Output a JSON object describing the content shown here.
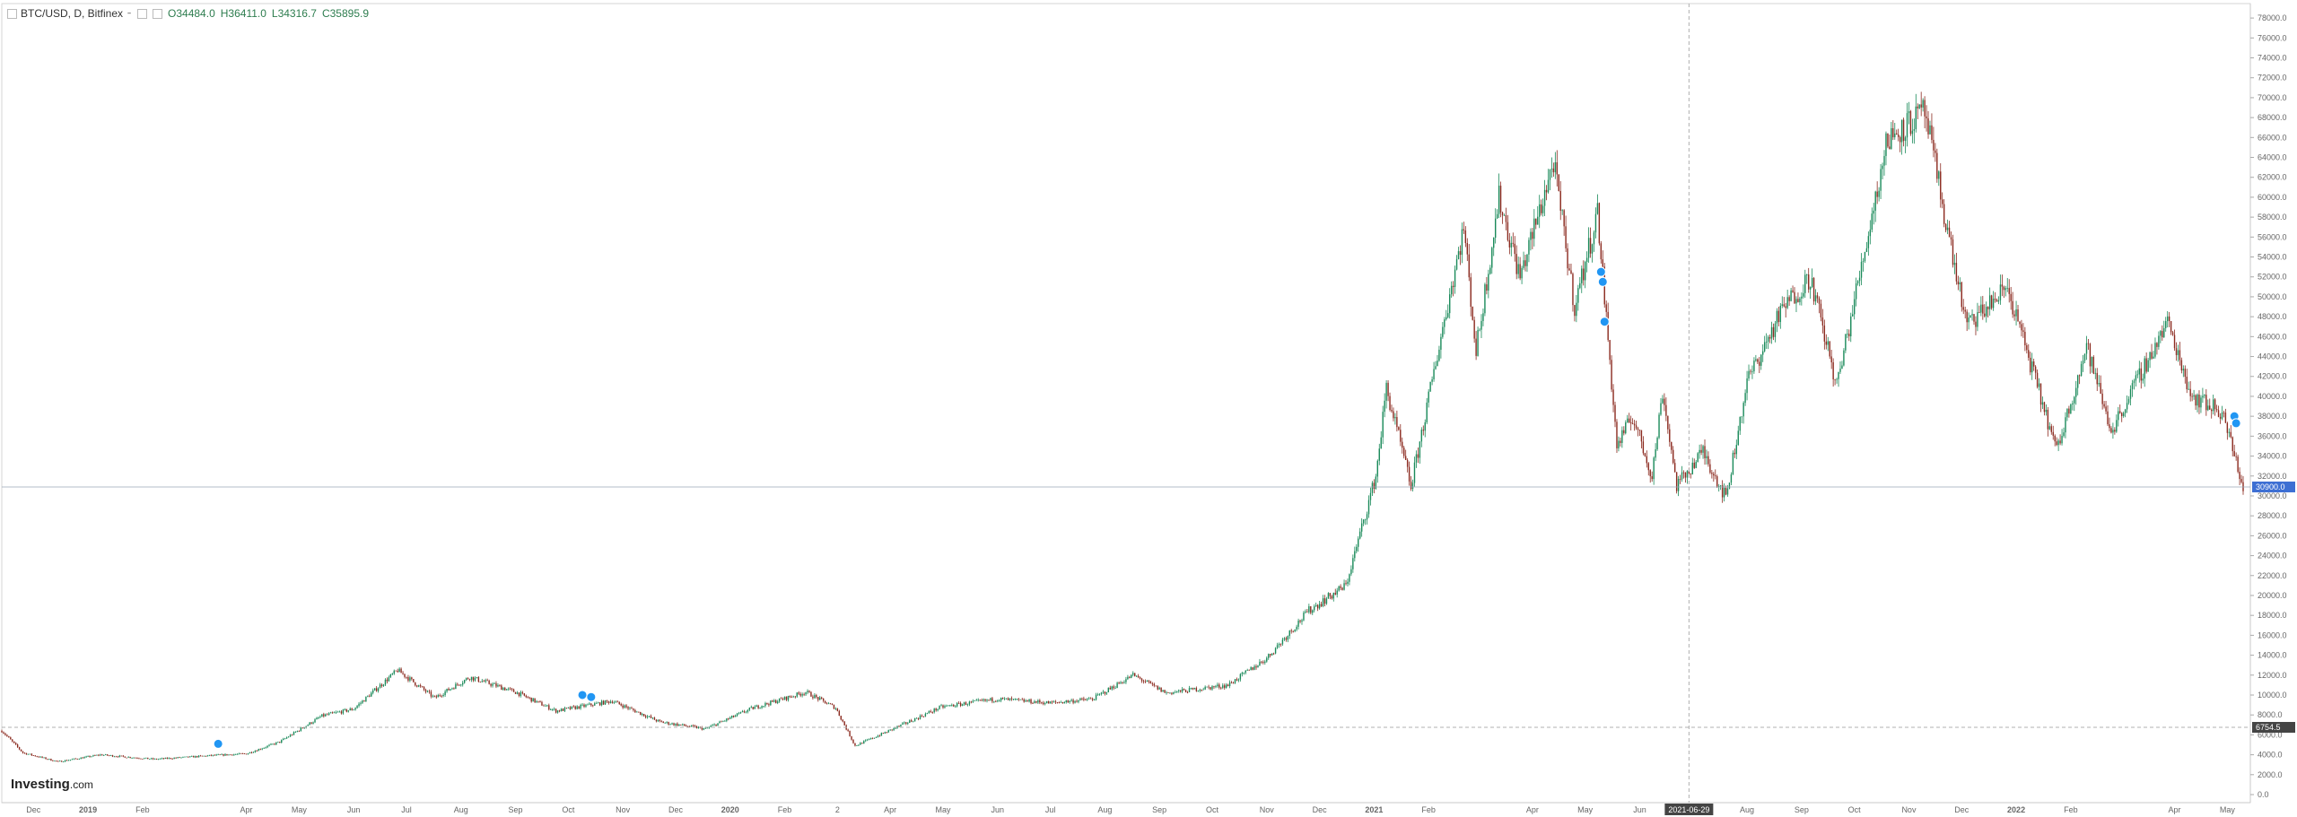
{
  "header": {
    "symbol": "BTC/USD, D, Bitfinex",
    "ohlc": {
      "open": "O34484.0",
      "high": "H36411.0",
      "low": "L34316.7",
      "close": "C35895.9"
    }
  },
  "brand": {
    "name": "Investing",
    "suffix": ".com"
  },
  "colors": {
    "up": "#1a8a5a",
    "down": "#8b2a1f",
    "grid": "#efefef",
    "axis": "#888888",
    "crosshair": "#b0b0b0",
    "price_badge": "#3d6fd3",
    "marker": "#2196f3"
  },
  "chart_data": {
    "type": "candlestick",
    "title": "",
    "ylim": [
      0,
      79000
    ],
    "x_range": [
      "2018-11-13",
      "2022-05-10"
    ],
    "y_ticks": [
      0,
      2000,
      4000,
      6000,
      8000,
      10000,
      12000,
      14000,
      16000,
      18000,
      20000,
      22000,
      24000,
      26000,
      28000,
      30000,
      32000,
      34000,
      36000,
      38000,
      40000,
      42000,
      44000,
      46000,
      48000,
      50000,
      52000,
      54000,
      56000,
      58000,
      60000,
      62000,
      64000,
      66000,
      68000,
      70000,
      72000,
      74000,
      76000,
      78000
    ],
    "x_labels": [
      {
        "date": "2018-12-01",
        "label": "Dec"
      },
      {
        "date": "2019-01-01",
        "label": "2019"
      },
      {
        "date": "2019-02-01",
        "label": "Feb"
      },
      {
        "date": "2019-04-01",
        "label": "Apr"
      },
      {
        "date": "2019-05-01",
        "label": "May"
      },
      {
        "date": "2019-06-01",
        "label": "Jun"
      },
      {
        "date": "2019-07-01",
        "label": "Jul"
      },
      {
        "date": "2019-08-01",
        "label": "Aug"
      },
      {
        "date": "2019-09-01",
        "label": "Sep"
      },
      {
        "date": "2019-10-01",
        "label": "Oct"
      },
      {
        "date": "2019-11-01",
        "label": "Nov"
      },
      {
        "date": "2019-12-01",
        "label": "Dec"
      },
      {
        "date": "2020-01-01",
        "label": "2020"
      },
      {
        "date": "2020-02-01",
        "label": "Feb"
      },
      {
        "date": "2020-03-02",
        "label": "2"
      },
      {
        "date": "2020-04-01",
        "label": "Apr"
      },
      {
        "date": "2020-05-01",
        "label": "May"
      },
      {
        "date": "2020-06-01",
        "label": "Jun"
      },
      {
        "date": "2020-07-01",
        "label": "Jul"
      },
      {
        "date": "2020-08-01",
        "label": "Aug"
      },
      {
        "date": "2020-09-01",
        "label": "Sep"
      },
      {
        "date": "2020-10-01",
        "label": "Oct"
      },
      {
        "date": "2020-11-01",
        "label": "Nov"
      },
      {
        "date": "2020-12-01",
        "label": "Dec"
      },
      {
        "date": "2021-01-01",
        "label": "2021"
      },
      {
        "date": "2021-02-01",
        "label": "Feb"
      },
      {
        "date": "2021-04-01",
        "label": "Apr"
      },
      {
        "date": "2021-05-01",
        "label": "May"
      },
      {
        "date": "2021-06-01",
        "label": "Jun"
      },
      {
        "date": "2021-08-01",
        "label": "Aug"
      },
      {
        "date": "2021-09-01",
        "label": "Sep"
      },
      {
        "date": "2021-10-01",
        "label": "Oct"
      },
      {
        "date": "2021-11-01",
        "label": "Nov"
      },
      {
        "date": "2021-12-01",
        "label": "Dec"
      },
      {
        "date": "2022-01-01",
        "label": "2022"
      },
      {
        "date": "2022-02-01",
        "label": "Feb"
      },
      {
        "date": "2022-04-01",
        "label": "Apr"
      },
      {
        "date": "2022-05-01",
        "label": "May"
      }
    ],
    "crosshair": {
      "date": "2021-06-29",
      "date_label": "2021-06-29",
      "price": 6754.5,
      "price_label": "6754.5"
    },
    "last_price": {
      "value": 30900,
      "label": "30900.0"
    },
    "trend": [
      [
        "2018-11-13",
        6400
      ],
      [
        "2018-11-25",
        4200
      ],
      [
        "2018-12-15",
        3300
      ],
      [
        "2019-01-08",
        4000
      ],
      [
        "2019-02-08",
        3550
      ],
      [
        "2019-03-15",
        3950
      ],
      [
        "2019-04-01",
        4100
      ],
      [
        "2019-04-20",
        5300
      ],
      [
        "2019-05-14",
        7900
      ],
      [
        "2019-06-01",
        8600
      ],
      [
        "2019-06-26",
        12500
      ],
      [
        "2019-07-17",
        9700
      ],
      [
        "2019-08-06",
        11800
      ],
      [
        "2019-09-01",
        10300
      ],
      [
        "2019-09-24",
        8400
      ],
      [
        "2019-10-26",
        9400
      ],
      [
        "2019-11-22",
        7300
      ],
      [
        "2019-12-18",
        6600
      ],
      [
        "2020-01-14",
        8700
      ],
      [
        "2020-02-13",
        10300
      ],
      [
        "2020-03-01",
        8700
      ],
      [
        "2020-03-12",
        4900
      ],
      [
        "2020-03-30",
        6300
      ],
      [
        "2020-04-30",
        8800
      ],
      [
        "2020-06-01",
        9600
      ],
      [
        "2020-07-01",
        9200
      ],
      [
        "2020-07-25",
        9600
      ],
      [
        "2020-08-17",
        12000
      ],
      [
        "2020-09-05",
        10200
      ],
      [
        "2020-10-10",
        11000
      ],
      [
        "2020-11-01",
        13700
      ],
      [
        "2020-11-25",
        18500
      ],
      [
        "2020-12-16",
        21000
      ],
      [
        "2021-01-02",
        32000
      ],
      [
        "2021-01-08",
        40800
      ],
      [
        "2021-01-22",
        30900
      ],
      [
        "2021-02-08",
        46000
      ],
      [
        "2021-02-21",
        57000
      ],
      [
        "2021-02-28",
        44500
      ],
      [
        "2021-03-13",
        60000
      ],
      [
        "2021-03-25",
        52000
      ],
      [
        "2021-04-13",
        63500
      ],
      [
        "2021-04-25",
        49000
      ],
      [
        "2021-05-08",
        58500
      ],
      [
        "2021-05-19",
        35000
      ],
      [
        "2021-05-28",
        38000
      ],
      [
        "2021-06-08",
        32000
      ],
      [
        "2021-06-14",
        40500
      ],
      [
        "2021-06-22",
        31000
      ],
      [
        "2021-07-07",
        34500
      ],
      [
        "2021-07-20",
        29800
      ],
      [
        "2021-08-01",
        41500
      ],
      [
        "2021-08-22",
        49000
      ],
      [
        "2021-09-06",
        52000
      ],
      [
        "2021-09-21",
        41000
      ],
      [
        "2021-10-20",
        66000
      ],
      [
        "2021-11-10",
        68500
      ],
      [
        "2021-11-26",
        54000
      ],
      [
        "2021-12-04",
        47000
      ],
      [
        "2021-12-27",
        51000
      ],
      [
        "2022-01-24",
        34500
      ],
      [
        "2022-02-10",
        45000
      ],
      [
        "2022-02-24",
        36500
      ],
      [
        "2022-03-28",
        47500
      ],
      [
        "2022-04-11",
        40000
      ],
      [
        "2022-04-28",
        38500
      ],
      [
        "2022-05-10",
        30900
      ]
    ],
    "markers": [
      {
        "date": "2019-03-16",
        "price": 5100
      },
      {
        "date": "2019-10-09",
        "price": 10000
      },
      {
        "date": "2019-10-14",
        "price": 9800
      },
      {
        "date": "2021-05-10",
        "price": 52500
      },
      {
        "date": "2021-05-11",
        "price": 51500
      },
      {
        "date": "2021-05-12",
        "price": 47500
      },
      {
        "date": "2022-05-05",
        "price": 38000
      },
      {
        "date": "2022-05-06",
        "price": 37300
      }
    ]
  }
}
